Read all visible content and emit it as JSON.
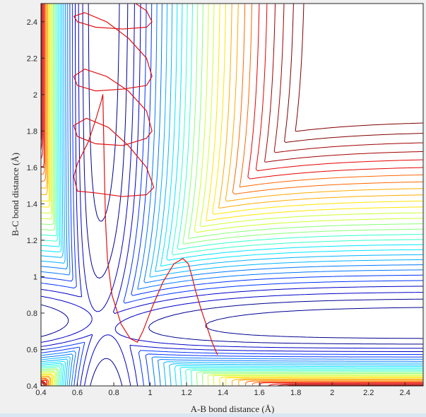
{
  "chart_data": {
    "type": "contour",
    "title": "",
    "xlabel": "A-B bond distance (Å)",
    "ylabel": "B-C bond distance (Å)",
    "xlim": [
      0.4,
      2.5
    ],
    "ylim": [
      0.4,
      2.5
    ],
    "xticks": [
      "0.4",
      "0.6",
      "0.8",
      "1",
      "1.2",
      "1.4",
      "1.6",
      "1.8",
      "2",
      "2.2",
      "2.4"
    ],
    "yticks": [
      "0.4",
      "0.6",
      "0.8",
      "1",
      "1.2",
      "1.4",
      "1.6",
      "1.8",
      "2",
      "2.2",
      "2.4"
    ],
    "grid": false,
    "colormap": [
      "#00008f",
      "#0000c8",
      "#0033ff",
      "#0077ff",
      "#00b3ff",
      "#00e5ff",
      "#33ffcc",
      "#88ff77",
      "#ccff33",
      "#ffe600",
      "#ffaa00",
      "#ff6600",
      "#e60000",
      "#a00000",
      "#800000"
    ],
    "contour_levels": [
      0.025,
      0.05,
      0.075,
      0.1,
      0.125,
      0.15,
      0.175,
      0.2,
      0.225,
      0.25,
      0.275,
      0.3,
      0.325,
      0.35,
      0.375,
      0.4,
      0.425,
      0.45,
      0.475,
      0.5,
      0.525,
      0.55,
      0.575,
      0.6,
      0.625,
      0.65,
      0.675,
      0.7,
      0.725,
      0.75
    ],
    "trajectory_color": "#e01010",
    "trajectory": [
      [
        1.37,
        0.57
      ],
      [
        1.34,
        0.64
      ],
      [
        1.31,
        0.73
      ],
      [
        1.28,
        0.82
      ],
      [
        1.25,
        0.92
      ],
      [
        1.23,
        1.0
      ],
      [
        1.21,
        1.07
      ],
      [
        1.18,
        1.1
      ],
      [
        1.13,
        1.07
      ],
      [
        1.07,
        0.97
      ],
      [
        1.01,
        0.83
      ],
      [
        0.96,
        0.7
      ],
      [
        0.93,
        0.64
      ],
      [
        0.89,
        0.66
      ],
      [
        0.84,
        0.74
      ],
      [
        0.79,
        0.9
      ],
      [
        0.765,
        1.1
      ],
      [
        0.755,
        1.3
      ],
      [
        0.75,
        1.5
      ],
      [
        0.745,
        1.75
      ],
      [
        0.74,
        2.0
      ],
      [
        0.74,
        2.0
      ],
      [
        0.73,
        1.96
      ],
      [
        0.7,
        1.86
      ],
      [
        0.66,
        1.74
      ],
      [
        0.6,
        1.62
      ],
      [
        0.58,
        1.55
      ],
      [
        0.6,
        1.47
      ],
      [
        0.7,
        1.46
      ],
      [
        0.85,
        1.44
      ],
      [
        0.98,
        1.45
      ],
      [
        1.02,
        1.49
      ],
      [
        0.98,
        1.6
      ],
      [
        0.88,
        1.72
      ],
      [
        0.77,
        1.82
      ],
      [
        0.65,
        1.87
      ],
      [
        0.58,
        1.83
      ],
      [
        0.6,
        1.77
      ],
      [
        0.7,
        1.73
      ],
      [
        0.85,
        1.72
      ],
      [
        0.98,
        1.76
      ],
      [
        1.01,
        1.8
      ],
      [
        0.98,
        1.91
      ],
      [
        0.88,
        2.02
      ],
      [
        0.76,
        2.1
      ],
      [
        0.64,
        2.14
      ],
      [
        0.58,
        2.1
      ],
      [
        0.6,
        2.05
      ],
      [
        0.7,
        2.02
      ],
      [
        0.85,
        2.03
      ],
      [
        0.98,
        2.05
      ],
      [
        1.01,
        2.1
      ],
      [
        0.98,
        2.2
      ],
      [
        0.88,
        2.31
      ],
      [
        0.76,
        2.4
      ],
      [
        0.64,
        2.45
      ],
      [
        0.58,
        2.43
      ],
      [
        0.6,
        2.4
      ],
      [
        0.7,
        2.37
      ],
      [
        0.85,
        2.36
      ],
      [
        0.98,
        2.37
      ],
      [
        1.01,
        2.4
      ],
      [
        0.98,
        2.46
      ],
      [
        0.92,
        2.5
      ]
    ],
    "reference_point": [
      0.74,
      0.74
    ]
  }
}
